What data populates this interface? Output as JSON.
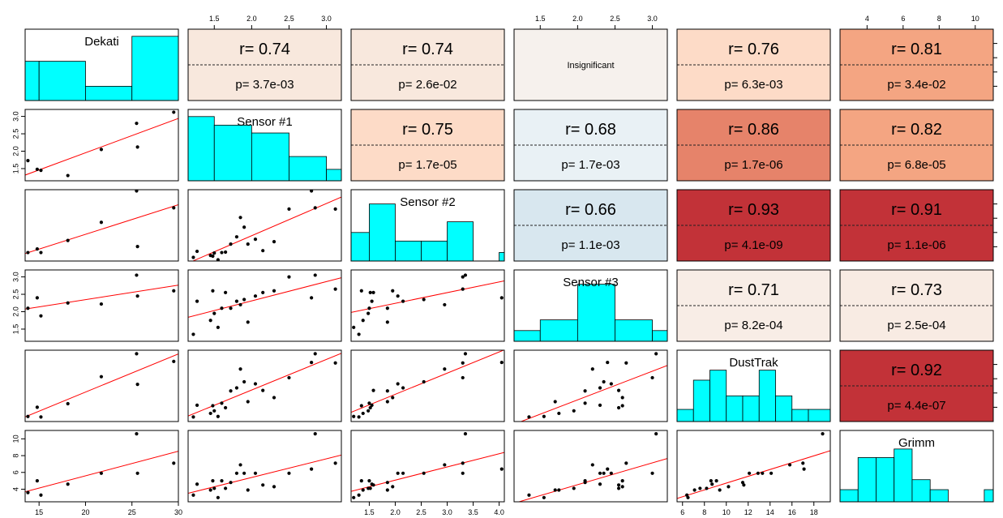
{
  "chart_data": {
    "type": "scatter-matrix",
    "variables": [
      "Dekati",
      "Sensor #1",
      "Sensor #2",
      "Sensor #3",
      "DustTrak",
      "Grimm"
    ],
    "ranges": [
      [
        13.5,
        30
      ],
      [
        1.15,
        3.2
      ],
      [
        1.15,
        4.1
      ],
      [
        1.15,
        3.2
      ],
      [
        5.5,
        19.5
      ],
      [
        2.5,
        11
      ]
    ],
    "tick_labels": {
      "top": [
        {
          "col": 1,
          "ticks": [
            "1.5",
            "2.0",
            "2.5",
            "3.0"
          ],
          "values": [
            1.5,
            2.0,
            2.5,
            3.0
          ]
        },
        {
          "col": 3,
          "ticks": [
            "1.5",
            "2.0",
            "2.5",
            "3.0"
          ],
          "values": [
            1.5,
            2.0,
            2.5,
            3.0
          ]
        },
        {
          "col": 5,
          "ticks": [
            "4",
            "6",
            "8",
            "10"
          ],
          "values": [
            4,
            6,
            8,
            10
          ]
        }
      ],
      "left": [
        {
          "row": 1,
          "ticks": [
            "1.5",
            "2.0",
            "2.5",
            "3.0"
          ],
          "values": [
            1.5,
            2.0,
            2.5,
            3.0
          ]
        },
        {
          "row": 3,
          "ticks": [
            "1.5",
            "2.0",
            "2.5",
            "3.0"
          ],
          "values": [
            1.5,
            2.0,
            2.5,
            3.0
          ]
        },
        {
          "row": 5,
          "ticks": [
            "4",
            "6",
            "8",
            "10"
          ],
          "values": [
            4,
            6,
            8,
            10
          ]
        }
      ],
      "bottom": [
        {
          "col": 0,
          "ticks": [
            "15",
            "20",
            "25",
            "30"
          ],
          "values": [
            15,
            20,
            25,
            30
          ]
        },
        {
          "col": 2,
          "ticks": [
            "1.5",
            "2.0",
            "2.5",
            "3.0",
            "3.5",
            "4.0"
          ],
          "values": [
            1.5,
            2.0,
            2.5,
            3.0,
            3.5,
            4.0
          ]
        },
        {
          "col": 4,
          "ticks": [
            "6",
            "8",
            "10",
            "12",
            "14",
            "16",
            "18"
          ],
          "values": [
            6,
            8,
            10,
            12,
            14,
            16,
            18
          ]
        }
      ]
    },
    "histograms": [
      {
        "var": 0,
        "breaks": [
          13.5,
          15,
          20,
          25,
          30
        ],
        "heights": [
          0.55,
          0.55,
          0.2,
          0.9
        ]
      },
      {
        "var": 1,
        "breaks": [
          1.15,
          1.5,
          2.0,
          2.5,
          3.0,
          3.2
        ],
        "heights": [
          0.9,
          0.78,
          0.67,
          0.34,
          0.16
        ]
      },
      {
        "var": 2,
        "breaks": [
          1.15,
          1.5,
          2.0,
          2.5,
          3.0,
          3.5,
          4.0,
          4.1
        ],
        "heights": [
          0.4,
          0.8,
          0.28,
          0.28,
          0.55,
          0.0,
          0.12
        ]
      },
      {
        "var": 3,
        "breaks": [
          1.15,
          1.5,
          2.0,
          2.5,
          3.0,
          3.2
        ],
        "heights": [
          0.15,
          0.3,
          0.8,
          0.3,
          0.15
        ]
      },
      {
        "var": 4,
        "breaks": [
          5.5,
          7,
          8.5,
          10,
          11.5,
          13,
          14.5,
          16,
          17.5,
          19.5
        ],
        "heights": [
          0.17,
          0.58,
          0.72,
          0.36,
          0.36,
          0.72,
          0.36,
          0.17,
          0.17
        ]
      },
      {
        "var": 5,
        "breaks": [
          2.5,
          3.5,
          4.5,
          5.5,
          6.5,
          7.5,
          8.5,
          9.5,
          10.5,
          11.0
        ],
        "heights": [
          0.17,
          0.62,
          0.62,
          0.74,
          0.31,
          0.17,
          0.0,
          0.0,
          0.17
        ]
      }
    ],
    "correlations": [
      {
        "row": 0,
        "col": 1,
        "r": "r= 0.74",
        "p": "p= 3.7e-03",
        "color": "#f8e8dd"
      },
      {
        "row": 0,
        "col": 2,
        "r": "r= 0.74",
        "p": "p= 2.6e-02",
        "color": "#f8e8dd"
      },
      {
        "row": 0,
        "col": 3,
        "insignificant": "Insignificant",
        "color": "#f6f1ed"
      },
      {
        "row": 0,
        "col": 4,
        "r": "r= 0.76",
        "p": "p= 6.3e-03",
        "color": "#fddbc7"
      },
      {
        "row": 0,
        "col": 5,
        "r": "r= 0.81",
        "p": "p= 3.4e-02",
        "color": "#f4a582"
      },
      {
        "row": 1,
        "col": 2,
        "r": "r= 0.75",
        "p": "p= 1.7e-05",
        "color": "#fddbc7"
      },
      {
        "row": 1,
        "col": 3,
        "r": "r= 0.68",
        "p": "p= 1.7e-03",
        "color": "#e9f1f5"
      },
      {
        "row": 1,
        "col": 4,
        "r": "r= 0.86",
        "p": "p= 1.7e-06",
        "color": "#e6836a"
      },
      {
        "row": 1,
        "col": 5,
        "r": "r= 0.82",
        "p": "p= 6.8e-05",
        "color": "#f4a582"
      },
      {
        "row": 2,
        "col": 3,
        "r": "r= 0.66",
        "p": "p= 1.1e-03",
        "color": "#d8e7ef"
      },
      {
        "row": 2,
        "col": 4,
        "r": "r= 0.93",
        "p": "p= 4.1e-09",
        "color": "#c23238"
      },
      {
        "row": 2,
        "col": 5,
        "r": "r= 0.91",
        "p": "p= 1.1e-06",
        "color": "#c23238"
      },
      {
        "row": 3,
        "col": 4,
        "r": "r= 0.71",
        "p": "p= 8.2e-04",
        "color": "#f8ede6"
      },
      {
        "row": 3,
        "col": 5,
        "r": "r= 0.73",
        "p": "p= 2.5e-04",
        "color": "#f8ebe3"
      },
      {
        "row": 4,
        "col": 5,
        "r": "r= 0.92",
        "p": "p= 4.4e-07",
        "color": "#c23238"
      }
    ],
    "observations": {
      "dekati": [
        13.8,
        14.8,
        15.2,
        18.1,
        21.7,
        25.5,
        25.6,
        29.5
      ],
      "s1_k": [
        1.73,
        1.48,
        1.45,
        1.3,
        2.05,
        2.8,
        2.12,
        3.12
      ],
      "s2_k": [
        1.5,
        1.65,
        1.5,
        2.0,
        2.75,
        4.05,
        1.75,
        3.35
      ],
      "s3_k": [
        2.1,
        2.4,
        1.88,
        2.25,
        2.22,
        3.05,
        2.45,
        2.6
      ],
      "dt_k": [
        6.5,
        8.3,
        6.4,
        9.0,
        14.3,
        18.8,
        12.8,
        17.3
      ],
      "g_k": [
        3.6,
        5.0,
        3.3,
        4.6,
        5.9,
        10.6,
        5.9,
        7.1
      ],
      "s1_all": [
        1.22,
        1.27,
        1.45,
        1.48,
        1.5,
        1.55,
        1.6,
        1.65,
        1.72,
        1.8,
        1.85,
        1.9,
        1.95,
        2.05,
        2.15,
        2.3,
        2.5,
        2.8,
        2.85,
        3.12
      ],
      "s2_all": [
        1.3,
        1.55,
        1.38,
        1.35,
        1.48,
        1.2,
        1.5,
        1.52,
        1.85,
        2.15,
        2.95,
        2.55,
        1.85,
        2.05,
        1.58,
        1.95,
        3.3,
        4.05,
        3.35,
        3.3
      ],
      "s3_all": [
        1.35,
        2.3,
        1.75,
        2.6,
        1.95,
        1.55,
        2.1,
        2.55,
        2.1,
        2.3,
        2.2,
        2.35,
        1.7,
        2.45,
        2.55,
        2.6,
        3.0,
        2.4,
        3.05,
        2.65
      ],
      "dt_all": [
        6.4,
        8.7,
        7.1,
        8.6,
        7.6,
        6.5,
        9.1,
        8.2,
        11.5,
        12.1,
        15.8,
        13.3,
        9.4,
        12.9,
        11.6,
        10.2,
        14.1,
        17.1,
        18.8,
        17.0
      ],
      "g_all": [
        3.3,
        4.6,
        3.9,
        5.0,
        4.1,
        3.0,
        5.0,
        4.1,
        4.8,
        5.9,
        6.9,
        5.9,
        3.9,
        5.9,
        4.5,
        4.3,
        5.9,
        6.4,
        10.6,
        7.1
      ]
    }
  }
}
